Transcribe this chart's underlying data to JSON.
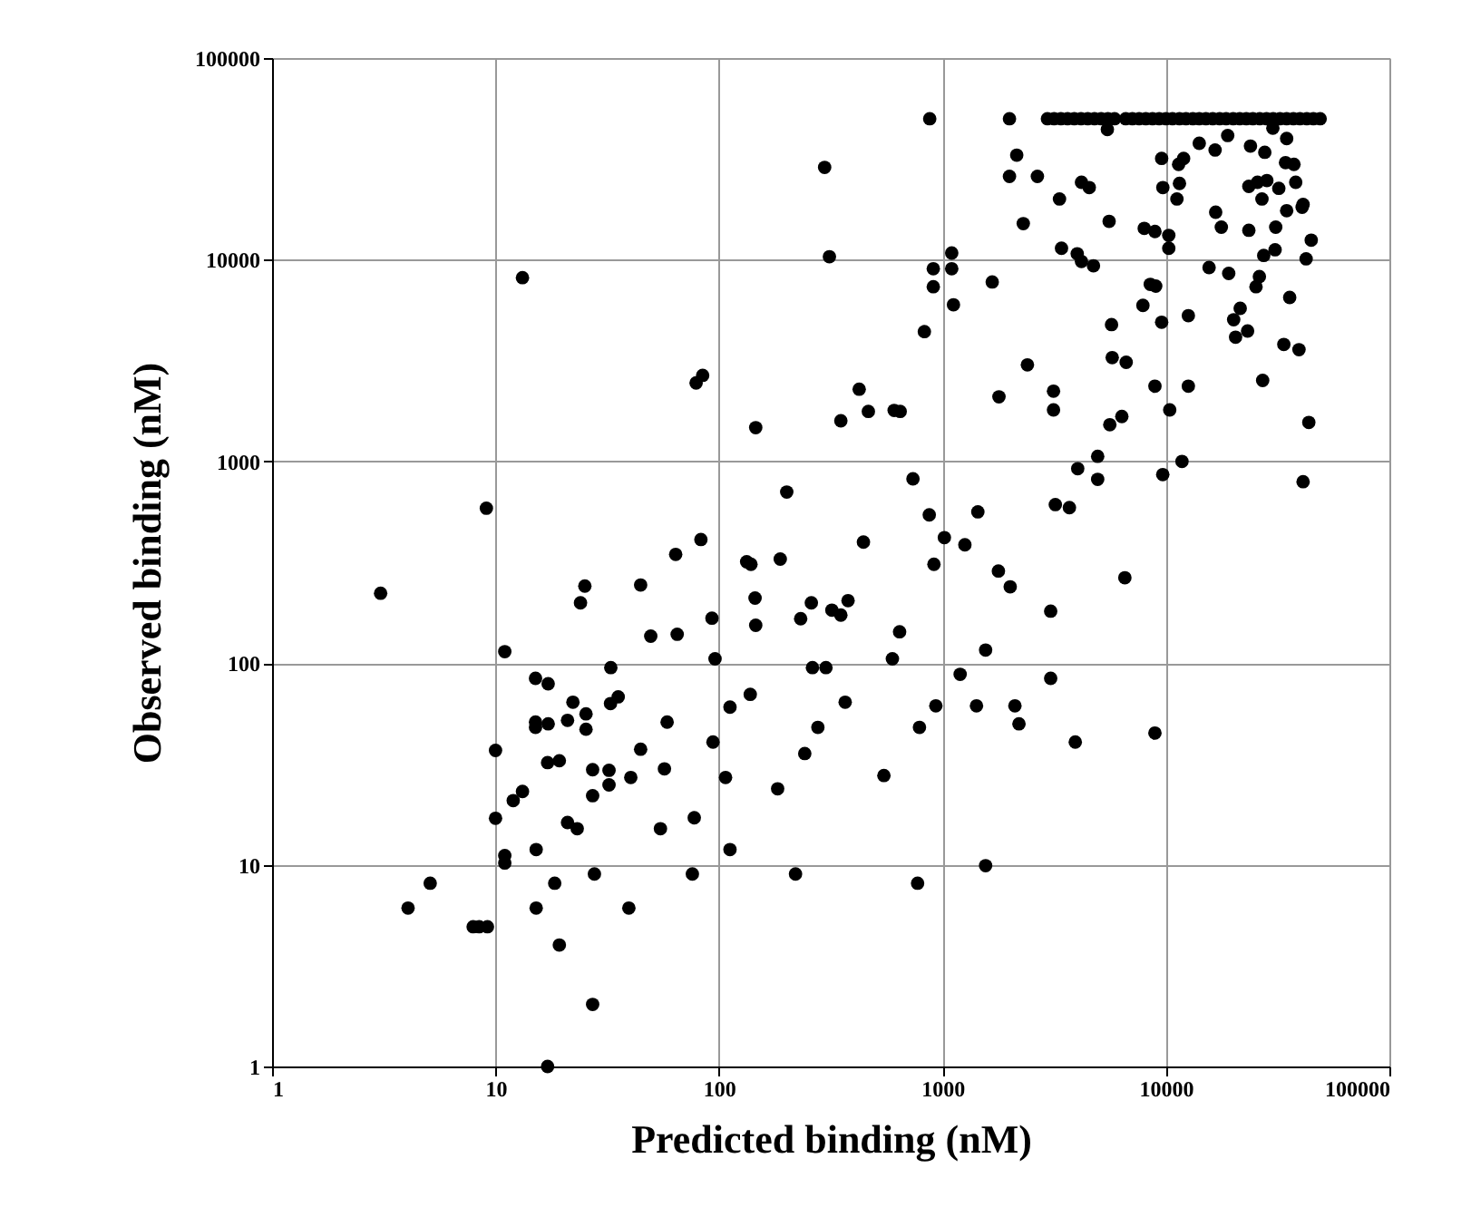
{
  "chart_data": {
    "type": "scatter",
    "xlabel": "Predicted binding (nM)",
    "ylabel": "Observed binding (nM)",
    "log": "xy",
    "xlim": [
      1,
      100000
    ],
    "ylim": [
      1,
      100000
    ],
    "xticks": [
      1,
      10,
      100,
      1000,
      10000,
      100000
    ],
    "yticks": [
      1,
      10,
      100,
      1000,
      10000,
      100000
    ],
    "grid": true,
    "marker": "circle",
    "series": [
      {
        "color": "#000000",
        "x": [
          13.2,
          79,
          84.5,
          146,
          9.1,
          83,
          64,
          133,
          3.06,
          25.1,
          24,
          44.6,
          139,
          145,
          146,
          49.5,
          65,
          93,
          96,
          11,
          15.1,
          17.2,
          32.8,
          22.2,
          25.4,
          25.4,
          32.7,
          35.4,
          15.1,
          15.1,
          17.2,
          21,
          58.6,
          94,
          112,
          138,
          10,
          44.6,
          17.1,
          19.3,
          27.2,
          32.2,
          32.2,
          27.2,
          40.3,
          57,
          107,
          13.2,
          12,
          10,
          21,
          23.2,
          54.7,
          77.5,
          11,
          11,
          15.2,
          112,
          5.1,
          4.06,
          7.94,
          8.45,
          9.2,
          15.2,
          18.4,
          27.7,
          39.5,
          76,
          19.3,
          27.2,
          17.1,
          188,
          443,
          232,
          259,
          320,
          351,
          378,
          643,
          597,
          262,
          301,
          367,
          277,
          242,
          183,
          547,
          789,
          934,
          916,
          1780,
          2010,
          1560,
          1200,
          1420,
          2110,
          2200,
          3050,
          3050,
          3930,
          6550,
          8930,
          220,
          774,
          1560,
          877,
          1995,
          2950,
          3160,
          3390,
          3630,
          3890,
          4170,
          4470,
          4790,
          5130,
          5500,
          5890,
          6610,
          7080,
          7590,
          8130,
          8710,
          9330,
          10000,
          10700,
          11500,
          12300,
          13200,
          14100,
          15100,
          16200,
          17400,
          18600,
          20000,
          21400,
          22900,
          24500,
          26300,
          28200,
          30200,
          32400,
          34700,
          37200,
          39800,
          42700,
          45700,
          49000,
          5470,
          297,
          312,
          2150,
          1995,
          2660,
          4190,
          4540,
          3340,
          2300,
          5570,
          3410,
          4010,
          4190,
          4740,
          8000,
          8930,
          10300,
          10300,
          9570,
          11400,
          12000,
          14100,
          16600,
          18900,
          23900,
          27700,
          30100,
          34300,
          34700,
          37400,
          9690,
          11500,
          11200,
          16700,
          17700,
          23500,
          23500,
          25700,
          28300,
          26900,
          32000,
          38100,
          34700,
          41100,
          31000,
          27400,
          30800,
          15600,
          19100,
          26200,
          25300,
          42400,
          35800,
          8510,
          9000,
          7890,
          9570,
          12600,
          21500,
          20100,
          20500,
          23200,
          33700,
          39400,
          27100,
          5710,
          5750,
          6640,
          2400,
          8930,
          12600,
          10400,
          6350,
          5610,
          43600,
          1790,
          3140,
          3140,
          4950,
          4030,
          4950,
          11800,
          9680,
          41100,
          3200,
          3700,
          1440,
          873,
          1020,
          1260,
          738,
          201,
          351,
          424,
          466,
          608,
          647,
          910,
          910,
          1100,
          1100,
          1120,
          830,
          1670,
          44700,
          40700
        ],
        "values": [
          8150,
          2450,
          2670,
          1470,
          586,
          410,
          346,
          318,
          222,
          241,
          199,
          244,
          309,
          210,
          154,
          136,
          139,
          167,
          105,
          114,
          84,
          79,
          95,
          64,
          56,
          47,
          63,
          68,
          51,
          48,
          50,
          52,
          51,
          40.6,
          60.5,
          70,
          36.9,
          37.4,
          32.1,
          32.8,
          29.6,
          29.4,
          24.9,
          22,
          27.1,
          29.9,
          27.1,
          23.1,
          20.8,
          17,
          16.2,
          15.1,
          15.1,
          17.1,
          11.1,
          10.2,
          11.9,
          11.9,
          8.1,
          6.1,
          4.93,
          4.93,
          4.93,
          6.1,
          8.1,
          9,
          6.1,
          9,
          4,
          2.03,
          1,
          328,
          398,
          166,
          199,
          183,
          173,
          204,
          143,
          105,
          95,
          95,
          64,
          48,
          35.6,
          23.8,
          27.7,
          48,
          61.4,
          309,
          286,
          239,
          116,
          88,
          61.4,
          61.4,
          50,
          181,
          84,
          40.6,
          265,
          45,
          9,
          8.1,
          9.9,
          50000,
          50000,
          50000,
          50000,
          50000,
          50000,
          50000,
          50000,
          50000,
          50000,
          50000,
          50000,
          50000,
          50000,
          50000,
          50000,
          50000,
          50000,
          50000,
          50000,
          50000,
          50000,
          50000,
          50000,
          50000,
          50000,
          50000,
          50000,
          50000,
          50000,
          50000,
          50000,
          50000,
          50000,
          50000,
          50000,
          50000,
          50000,
          50000,
          50000,
          50000,
          50000,
          50000,
          44200,
          28700,
          10350,
          33000,
          25900,
          25900,
          24200,
          22800,
          20000,
          15100,
          15500,
          11400,
          10700,
          9800,
          9330,
          14300,
          13800,
          13200,
          11400,
          31800,
          29700,
          31800,
          37800,
          35000,
          41300,
          36600,
          34100,
          44900,
          30300,
          39900,
          29700,
          22800,
          23900,
          20000,
          17200,
          14500,
          14000,
          23100,
          24200,
          24700,
          20000,
          22600,
          24200,
          17500,
          18800,
          14500,
          10500,
          11200,
          9150,
          8550,
          8250,
          7350,
          10100,
          6500,
          7550,
          7400,
          5940,
          4900,
          5280,
          5740,
          5040,
          4130,
          4430,
          3800,
          3580,
          2520,
          4770,
          3270,
          3100,
          3010,
          2360,
          2360,
          1800,
          1670,
          1520,
          1560,
          2090,
          2230,
          1800,
          1060,
          920,
          815,
          1000,
          860,
          793,
          611,
          590,
          562,
          543,
          419,
          386,
          820,
          705,
          1590,
          2280,
          1770,
          1790,
          1770,
          9020,
          7350,
          10800,
          9020,
          5980,
          4400,
          7760,
          12500,
          18200
        ]
      }
    ]
  }
}
